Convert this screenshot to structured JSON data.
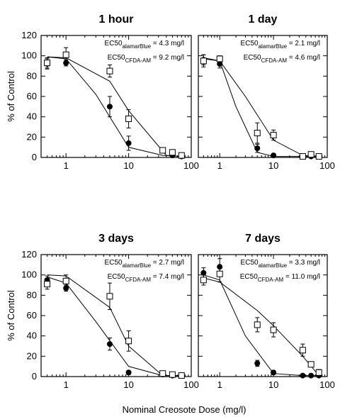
{
  "chart_data": [
    {
      "type": "scatter",
      "title": "1 hour",
      "xlabel": "",
      "ylabel": "% of Control",
      "xscale": "log",
      "xlim": [
        0.4,
        100
      ],
      "ylim": [
        0,
        120
      ],
      "x_ticks": [
        "1",
        "10",
        "100"
      ],
      "y_ticks": [
        "0",
        "20",
        "40",
        "60",
        "80",
        "100",
        "120"
      ],
      "grid": false,
      "annotations": [
        {
          "prefix": "EC50",
          "sub": "alamarBlue",
          "text": " = 4.3 mg/l"
        },
        {
          "prefix": "EC50",
          "sub": "CFDA-AM",
          "text": " = 9.2 mg/l"
        }
      ],
      "series": [
        {
          "marker": "filled-circle",
          "x": [
            0.5,
            1,
            5,
            10,
            35,
            50,
            70
          ],
          "y": [
            92,
            93,
            50,
            14,
            7,
            2,
            1
          ],
          "err": [
            5,
            3,
            10,
            7,
            2,
            2,
            2
          ]
        },
        {
          "marker": "open-square",
          "x": [
            0.5,
            1,
            5,
            10,
            35,
            50,
            70
          ],
          "y": [
            93,
            101,
            85,
            38,
            7,
            5,
            2
          ],
          "err": [
            5,
            7,
            6,
            9,
            2,
            2,
            2
          ]
        },
        {
          "marker": "line",
          "x": [
            0.5,
            1,
            5,
            10,
            40,
            70
          ],
          "y": [
            99,
            98,
            75,
            46,
            2,
            1
          ]
        },
        {
          "marker": "line",
          "x": [
            0.5,
            1,
            3,
            10,
            35,
            70
          ],
          "y": [
            99,
            97,
            62,
            10,
            2,
            1
          ]
        }
      ]
    },
    {
      "type": "scatter",
      "title": "1 day",
      "xlabel": "",
      "ylabel": "",
      "xscale": "log",
      "xlim": [
        0.4,
        100
      ],
      "ylim": [
        0,
        120
      ],
      "x_ticks": [
        "1",
        "10",
        "100"
      ],
      "y_ticks": [],
      "grid": false,
      "annotations": [
        {
          "prefix": "EC50",
          "sub": "alamarBlue",
          "text": " = 2.1 mg/l"
        },
        {
          "prefix": "EC50",
          "sub": "CFDA-AM",
          "text": " = 4.6 mg/l"
        }
      ],
      "series": [
        {
          "marker": "filled-circle",
          "x": [
            0.5,
            1,
            5,
            10,
            35,
            50,
            70
          ],
          "y": [
            96,
            92,
            9,
            2,
            1,
            1,
            1
          ],
          "err": [
            5,
            4,
            4,
            1,
            1,
            1,
            1
          ]
        },
        {
          "marker": "open-square",
          "x": [
            0.5,
            1,
            5,
            10,
            35,
            50,
            70
          ],
          "y": [
            95,
            97,
            24,
            22,
            1,
            3,
            1
          ],
          "err": [
            6,
            3,
            10,
            5,
            1,
            2,
            1
          ]
        },
        {
          "marker": "line",
          "x": [
            0.5,
            1,
            3,
            10,
            35,
            70
          ],
          "y": [
            97,
            95,
            60,
            17,
            2,
            1
          ]
        },
        {
          "marker": "line",
          "x": [
            0.5,
            1,
            2,
            5,
            10,
            70
          ],
          "y": [
            98,
            95,
            50,
            5,
            1,
            1
          ]
        }
      ]
    },
    {
      "type": "scatter",
      "title": "3 days",
      "xlabel": "Nominal Creosote Dose (mg/l)",
      "ylabel": "% of Control",
      "xscale": "log",
      "xlim": [
        0.4,
        100
      ],
      "ylim": [
        0,
        120
      ],
      "x_ticks": [
        "1",
        "10",
        "100"
      ],
      "y_ticks": [
        "0",
        "20",
        "40",
        "60",
        "80",
        "100",
        "120"
      ],
      "grid": false,
      "annotations": [
        {
          "prefix": "EC50",
          "sub": "alamarBlue",
          "text": " = 2.7 mg/l"
        },
        {
          "prefix": "EC50",
          "sub": "CFDA-AM",
          "text": " = 7.4 mg/l"
        }
      ],
      "series": [
        {
          "marker": "filled-circle",
          "x": [
            0.5,
            1,
            5,
            10,
            35,
            50,
            70
          ],
          "y": [
            95,
            87,
            32,
            4,
            2,
            1,
            1
          ],
          "err": [
            4,
            3,
            6,
            2,
            2,
            1,
            1
          ]
        },
        {
          "marker": "open-square",
          "x": [
            0.5,
            1,
            5,
            10,
            35,
            50,
            70
          ],
          "y": [
            91,
            94,
            79,
            35,
            3,
            2,
            1
          ],
          "err": [
            5,
            6,
            13,
            10,
            2,
            2,
            2
          ]
        },
        {
          "marker": "line",
          "x": [
            0.5,
            1,
            5,
            10,
            35,
            70
          ],
          "y": [
            100,
            99,
            68,
            30,
            1,
            1
          ]
        },
        {
          "marker": "line",
          "x": [
            0.5,
            1,
            3,
            10,
            35,
            70
          ],
          "y": [
            98,
            92,
            54,
            10,
            1,
            1
          ]
        }
      ]
    },
    {
      "type": "scatter",
      "title": "7 days",
      "xlabel": "Nominal Creosote Dose (mg/l)",
      "ylabel": "",
      "xscale": "log",
      "xlim": [
        0.4,
        100
      ],
      "ylim": [
        0,
        120
      ],
      "x_ticks": [
        "1",
        "10",
        "100"
      ],
      "y_ticks": [],
      "grid": false,
      "annotations": [
        {
          "prefix": "EC50",
          "sub": "alamarBlue",
          "text": " = 3.3 mg/l"
        },
        {
          "prefix": "EC50",
          "sub": "CFDA-AM",
          "text": " = 11.0 mg/l"
        }
      ],
      "series": [
        {
          "marker": "filled-circle",
          "x": [
            0.5,
            1,
            5,
            10,
            35,
            50,
            70
          ],
          "y": [
            102,
            108,
            13,
            4,
            1,
            1,
            1
          ],
          "err": [
            5,
            8,
            3,
            2,
            1,
            1,
            1
          ]
        },
        {
          "marker": "open-square",
          "x": [
            0.5,
            1,
            5,
            10,
            35,
            50,
            70
          ],
          "y": [
            95,
            101,
            51,
            46,
            26,
            12,
            4
          ],
          "err": [
            5,
            8,
            7,
            7,
            6,
            2,
            3
          ]
        },
        {
          "marker": "line",
          "x": [
            0.5,
            1,
            5,
            10,
            35,
            70
          ],
          "y": [
            97,
            93,
            65,
            50,
            20,
            1
          ]
        },
        {
          "marker": "line",
          "x": [
            0.5,
            1,
            3,
            10,
            35,
            70
          ],
          "y": [
            100,
            95,
            40,
            3,
            1,
            1
          ]
        }
      ]
    }
  ]
}
